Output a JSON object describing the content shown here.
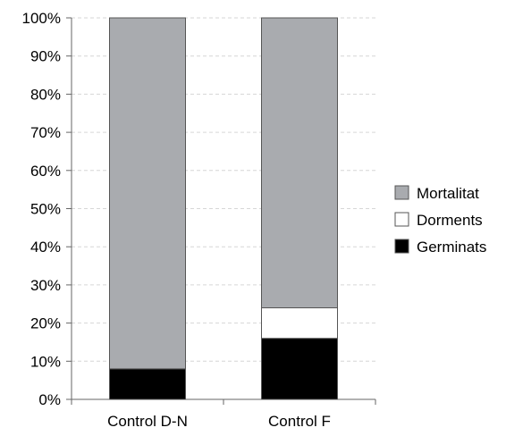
{
  "chart_data": {
    "type": "bar",
    "stacked": true,
    "percent": true,
    "categories": [
      "Control D-N",
      "Control F"
    ],
    "series": [
      {
        "name": "Germinats",
        "values": [
          8,
          16
        ],
        "color": "#000000"
      },
      {
        "name": "Dorments",
        "values": [
          0,
          8
        ],
        "color": "#ffffff"
      },
      {
        "name": "Mortalitat",
        "values": [
          92,
          76
        ],
        "color": "#a9abaf"
      }
    ],
    "y_ticks": [
      "0%",
      "10%",
      "20%",
      "30%",
      "40%",
      "50%",
      "60%",
      "70%",
      "80%",
      "90%",
      "100%"
    ],
    "ylim": [
      0,
      100
    ],
    "grid": true,
    "legend": {
      "position": "right",
      "order": [
        "Mortalitat",
        "Dorments",
        "Germinats"
      ]
    }
  }
}
